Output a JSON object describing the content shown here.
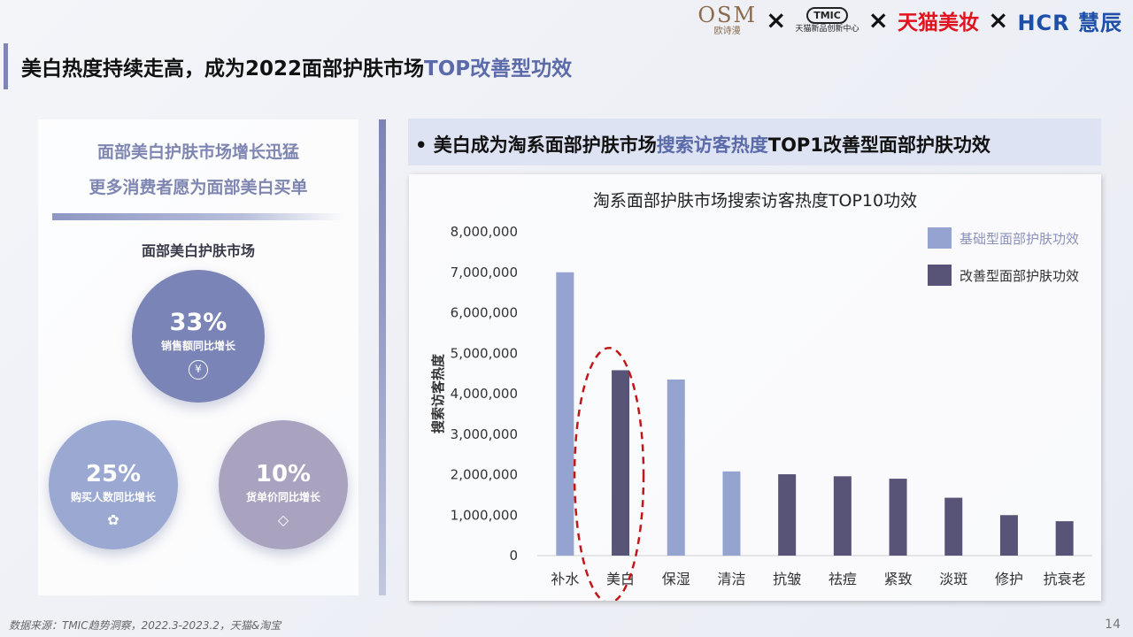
{
  "logos": {
    "osm_big": "OSM",
    "osm_small": "欧诗漫",
    "tmic_box": "TMIC",
    "tmic_small": "天猫新品创新中心",
    "tmall": "天猫美妆",
    "hcr": "HCR 慧辰",
    "times": "×"
  },
  "page_title": {
    "part1": "美白热度持续走高，成为2022面部护肤市场",
    "highlight": "TOP改善型功效"
  },
  "left_panel": {
    "line1": "面部美白护肤市场增长迅猛",
    "line2": "更多消费者愿为面部美白买单",
    "subtitle": "面部美白护肤市场",
    "stats": [
      {
        "value": "33%",
        "label": "销售额同比增长",
        "icon": "yen-icon",
        "glyph": "¥"
      },
      {
        "value": "25%",
        "label": "购买人数同比增长",
        "icon": "people-icon",
        "glyph": "✿"
      },
      {
        "value": "10%",
        "label": "货单价同比增长",
        "icon": "price-tag-icon",
        "glyph": "◇"
      }
    ]
  },
  "right_header": {
    "bullet": "•",
    "part1": "美白成为淘系面部护肤市场",
    "highlight": "搜索访客热度",
    "part2": "TOP1改善型面部护肤功效"
  },
  "chart_data": {
    "type": "bar",
    "title": "淘系面部护肤市场搜索访客热度TOP10功效",
    "ylabel": "搜索访客热度",
    "xlabel": "",
    "ylim": [
      0,
      8000000
    ],
    "yticks": [
      0,
      1000000,
      2000000,
      3000000,
      4000000,
      5000000,
      6000000,
      7000000,
      8000000
    ],
    "ytick_labels": [
      "0",
      "1,000,000",
      "2,000,000",
      "3,000,000",
      "4,000,000",
      "5,000,000",
      "6,000,000",
      "7,000,000",
      "8,000,000"
    ],
    "grid": false,
    "legend_position": "top-right",
    "legend": [
      {
        "name": "基础型面部护肤功效",
        "color": "#95a3d1"
      },
      {
        "name": "改善型面部护肤功效",
        "color": "#575478"
      }
    ],
    "categories": [
      "补水",
      "美白",
      "保湿",
      "清洁",
      "抗皱",
      "祛痘",
      "紧致",
      "淡斑",
      "修护",
      "抗衰老"
    ],
    "values": [
      7000000,
      4580000,
      4350000,
      2080000,
      2010000,
      1960000,
      1900000,
      1430000,
      1000000,
      850000
    ],
    "series_index": [
      0,
      1,
      0,
      0,
      1,
      1,
      1,
      1,
      1,
      1
    ],
    "highlighted_category": "美白",
    "highlight_color": "#c01818"
  },
  "footnote": "数据来源：TMIC趋势洞察，2022.3-2023.2，天猫&淘宝",
  "page_number": "14"
}
